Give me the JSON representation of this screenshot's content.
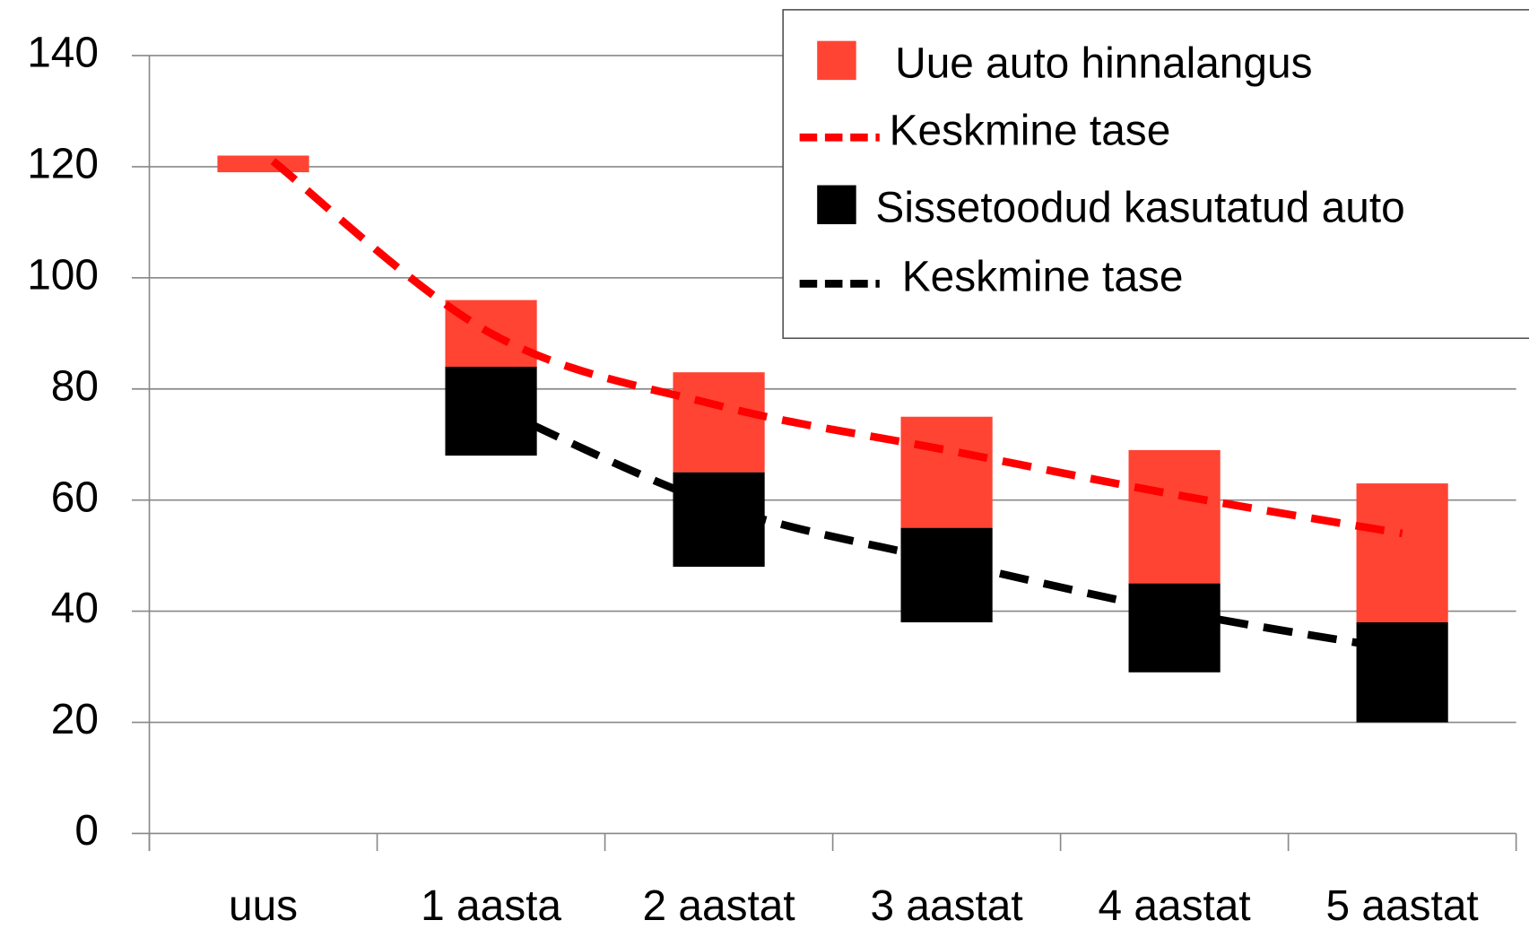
{
  "chart_data": {
    "type": "floating-bar",
    "categories": [
      "uus",
      "1 aasta",
      "2 aastat",
      "3 aastat",
      "4 aastat",
      "5 aastat"
    ],
    "ylim": [
      0,
      140
    ],
    "yticks": [
      0,
      20,
      40,
      60,
      80,
      100,
      120,
      140
    ],
    "grid": true,
    "series": [
      {
        "name": "Uue auto hinnalangus",
        "color": "#ff4433",
        "low": [
          119,
          84,
          65,
          55,
          45,
          38
        ],
        "high": [
          122,
          96,
          83,
          75,
          69,
          63
        ]
      },
      {
        "name": "Sissetoodud kasutatud auto",
        "color": "#000000",
        "low": [
          null,
          68,
          48,
          38,
          29,
          20
        ],
        "high": [
          null,
          84,
          65,
          55,
          45,
          38
        ]
      }
    ],
    "lines": [
      {
        "name": "Keskmine tase",
        "color": "#ff0000",
        "values": [
          121,
          90,
          77,
          69,
          61,
          54
        ]
      },
      {
        "name": "Keskmine tase",
        "color": "#000000",
        "values": [
          null,
          77,
          59,
          49,
          40,
          33
        ]
      }
    ],
    "legend": "top-right"
  }
}
